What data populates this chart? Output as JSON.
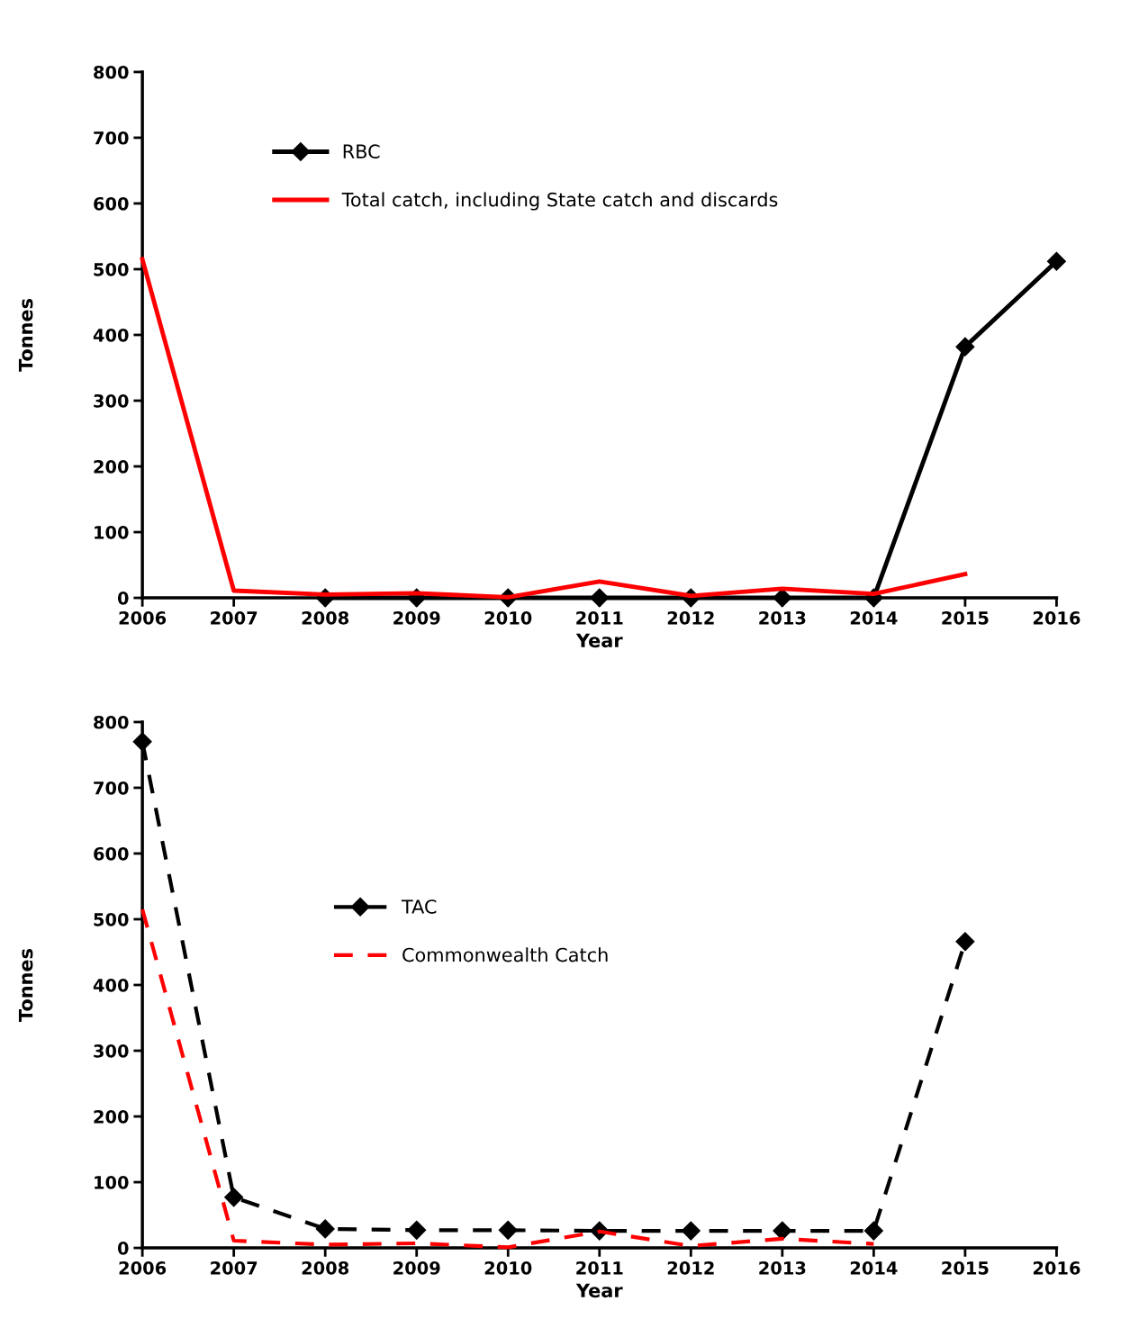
{
  "chart_data": [
    {
      "type": "line",
      "xlabel": "Year",
      "ylabel": "Tonnes",
      "x": [
        2006,
        2007,
        2008,
        2009,
        2010,
        2011,
        2012,
        2013,
        2014,
        2015,
        2016
      ],
      "xlim": [
        2006,
        2016
      ],
      "xticks": [
        2006,
        2007,
        2008,
        2009,
        2010,
        2011,
        2012,
        2013,
        2014,
        2015,
        2016
      ],
      "ylim": [
        0,
        800
      ],
      "yticks": [
        0,
        100,
        200,
        300,
        400,
        500,
        600,
        700,
        800
      ],
      "grid": false,
      "legend": "top",
      "line_style": "solid",
      "series": [
        {
          "name": "RBC",
          "color": "#000000",
          "marker": "diamond",
          "values": [
            null,
            null,
            0,
            0,
            0,
            0,
            0,
            0,
            0,
            382,
            512
          ]
        },
        {
          "name": "Total catch, including State catch and discards",
          "color": "#ff0000",
          "marker": "none",
          "values": [
            515,
            11,
            5,
            7,
            1,
            25,
            3,
            14,
            6,
            36,
            null
          ]
        }
      ]
    },
    {
      "type": "line",
      "xlabel": "Year",
      "ylabel": "Tonnes",
      "x": [
        2006,
        2007,
        2008,
        2009,
        2010,
        2011,
        2012,
        2013,
        2014,
        2015
      ],
      "xlim": [
        2006,
        2016
      ],
      "xticks": [
        2006,
        2007,
        2008,
        2009,
        2010,
        2011,
        2012,
        2013,
        2014,
        2015,
        2016
      ],
      "ylim": [
        0,
        800
      ],
      "yticks": [
        0,
        100,
        200,
        300,
        400,
        500,
        600,
        700,
        800
      ],
      "grid": false,
      "legend": "center",
      "line_style": "dashed",
      "series": [
        {
          "name": "TAC",
          "color": "#000000",
          "marker": "diamond",
          "values": [
            770,
            77,
            29,
            27,
            27,
            26,
            26,
            26,
            26,
            466
          ]
        },
        {
          "name": "Commonwealth Catch",
          "color": "#ff0000",
          "marker": "none",
          "values": [
            515,
            11,
            5,
            7,
            1,
            25,
            3,
            14,
            6,
            null
          ]
        }
      ]
    }
  ]
}
